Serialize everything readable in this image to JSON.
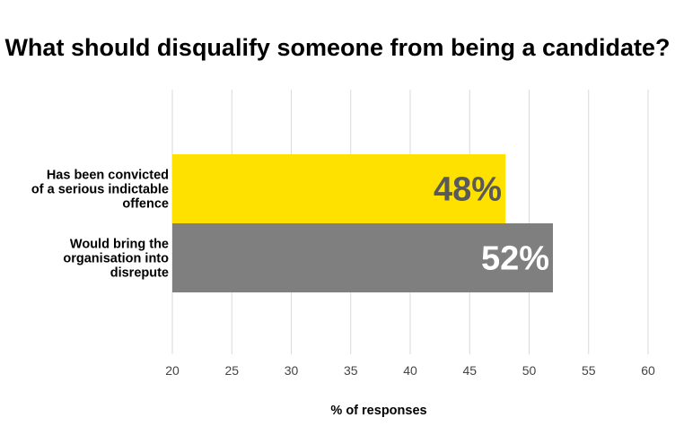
{
  "chart_data": {
    "type": "bar",
    "orientation": "horizontal",
    "title": "What should disqualify someone from being a candidate?",
    "xlabel": "% of responses",
    "ylabel": "",
    "xlim": [
      20,
      60
    ],
    "xticks": [
      20,
      25,
      30,
      35,
      40,
      45,
      50,
      55,
      60
    ],
    "grid": true,
    "categories": [
      [
        "Has been convicted",
        "of a serious indictable",
        "offence"
      ],
      [
        "Would bring the",
        "organisation into",
        "disrepute"
      ]
    ],
    "values": [
      48,
      52
    ],
    "data_labels": [
      "48%",
      "52%"
    ],
    "colors": [
      "#FFE100",
      "#7F7F7F"
    ],
    "data_label_colors": [
      "#595959",
      "#FFFFFF"
    ]
  }
}
